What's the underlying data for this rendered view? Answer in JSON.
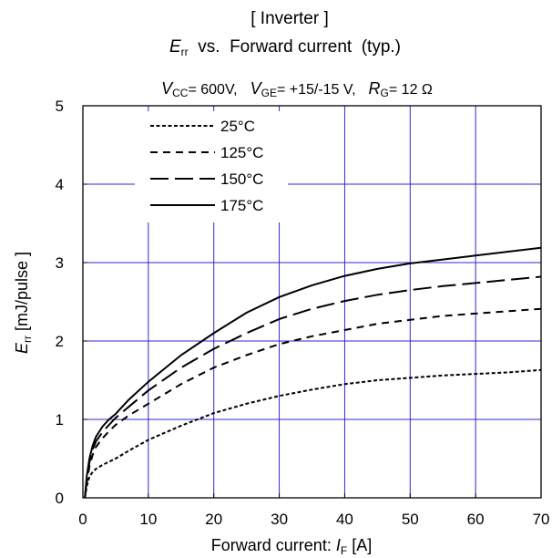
{
  "chart_data": {
    "type": "line",
    "title": "[ Inverter ]",
    "subtitle": {
      "main": "E",
      "main_sub": "rr",
      "rest": "  vs.  Forward current  (typ.)"
    },
    "conditions": [
      {
        "sym": "V",
        "sub": "CC",
        "val": "= 600V,"
      },
      {
        "sym": "V",
        "sub": "GE",
        "val": "= +15/-15 V,"
      },
      {
        "sym": "R",
        "sub": "G",
        "val": "= 12 Ω"
      }
    ],
    "xlabel": {
      "text": "Forward current: ",
      "sym": "I",
      "sub": "F",
      "unit": " [A]"
    },
    "ylabel": {
      "sym": "E",
      "sub": "rr",
      "unit": " [mJ/pulse ]"
    },
    "xlim": [
      0,
      70
    ],
    "ylim": [
      0,
      5
    ],
    "x_ticks": [
      0,
      10,
      20,
      30,
      40,
      50,
      60,
      70
    ],
    "y_ticks": [
      0,
      1,
      2,
      3,
      4,
      5
    ],
    "grid": true,
    "grid_color": "#2a2ad0",
    "legend_position": "top-left",
    "series": [
      {
        "name": "25°C",
        "dash": "short-dot",
        "points": [
          [
            0.3,
            0
          ],
          [
            0.6,
            0.15
          ],
          [
            1,
            0.27
          ],
          [
            1.5,
            0.33
          ],
          [
            2,
            0.37
          ],
          [
            3,
            0.42
          ],
          [
            4,
            0.46
          ],
          [
            5,
            0.5
          ],
          [
            7,
            0.6
          ],
          [
            10,
            0.74
          ],
          [
            15,
            0.92
          ],
          [
            20,
            1.08
          ],
          [
            25,
            1.2
          ],
          [
            30,
            1.3
          ],
          [
            35,
            1.38
          ],
          [
            40,
            1.45
          ],
          [
            45,
            1.5
          ],
          [
            50,
            1.53
          ],
          [
            55,
            1.56
          ],
          [
            60,
            1.58
          ],
          [
            65,
            1.6
          ],
          [
            70,
            1.63
          ]
        ]
      },
      {
        "name": "125°C",
        "dash": "dash",
        "points": [
          [
            0.3,
            0
          ],
          [
            0.6,
            0.2
          ],
          [
            1,
            0.4
          ],
          [
            1.5,
            0.55
          ],
          [
            2,
            0.65
          ],
          [
            3,
            0.76
          ],
          [
            4,
            0.85
          ],
          [
            5,
            0.93
          ],
          [
            7,
            1.05
          ],
          [
            10,
            1.2
          ],
          [
            15,
            1.45
          ],
          [
            20,
            1.66
          ],
          [
            25,
            1.82
          ],
          [
            30,
            1.96
          ],
          [
            35,
            2.06
          ],
          [
            40,
            2.14
          ],
          [
            45,
            2.22
          ],
          [
            50,
            2.27
          ],
          [
            55,
            2.32
          ],
          [
            60,
            2.35
          ],
          [
            65,
            2.38
          ],
          [
            70,
            2.41
          ]
        ]
      },
      {
        "name": "150°C",
        "dash": "long-dash",
        "points": [
          [
            0.3,
            0
          ],
          [
            0.6,
            0.25
          ],
          [
            1,
            0.45
          ],
          [
            1.5,
            0.62
          ],
          [
            2,
            0.72
          ],
          [
            3,
            0.84
          ],
          [
            4,
            0.93
          ],
          [
            5,
            1.02
          ],
          [
            7,
            1.16
          ],
          [
            10,
            1.37
          ],
          [
            15,
            1.66
          ],
          [
            20,
            1.9
          ],
          [
            25,
            2.1
          ],
          [
            30,
            2.28
          ],
          [
            35,
            2.41
          ],
          [
            40,
            2.51
          ],
          [
            45,
            2.59
          ],
          [
            50,
            2.65
          ],
          [
            55,
            2.7
          ],
          [
            60,
            2.74
          ],
          [
            65,
            2.78
          ],
          [
            70,
            2.82
          ]
        ]
      },
      {
        "name": "175°C",
        "dash": "solid",
        "points": [
          [
            0.3,
            0
          ],
          [
            0.6,
            0.28
          ],
          [
            1,
            0.5
          ],
          [
            1.5,
            0.67
          ],
          [
            2,
            0.78
          ],
          [
            3,
            0.91
          ],
          [
            4,
            1.0
          ],
          [
            5,
            1.07
          ],
          [
            7,
            1.25
          ],
          [
            10,
            1.48
          ],
          [
            15,
            1.82
          ],
          [
            20,
            2.1
          ],
          [
            25,
            2.36
          ],
          [
            30,
            2.56
          ],
          [
            35,
            2.71
          ],
          [
            40,
            2.83
          ],
          [
            45,
            2.92
          ],
          [
            50,
            2.99
          ],
          [
            55,
            3.04
          ],
          [
            60,
            3.09
          ],
          [
            65,
            3.14
          ],
          [
            70,
            3.19
          ]
        ]
      }
    ]
  }
}
